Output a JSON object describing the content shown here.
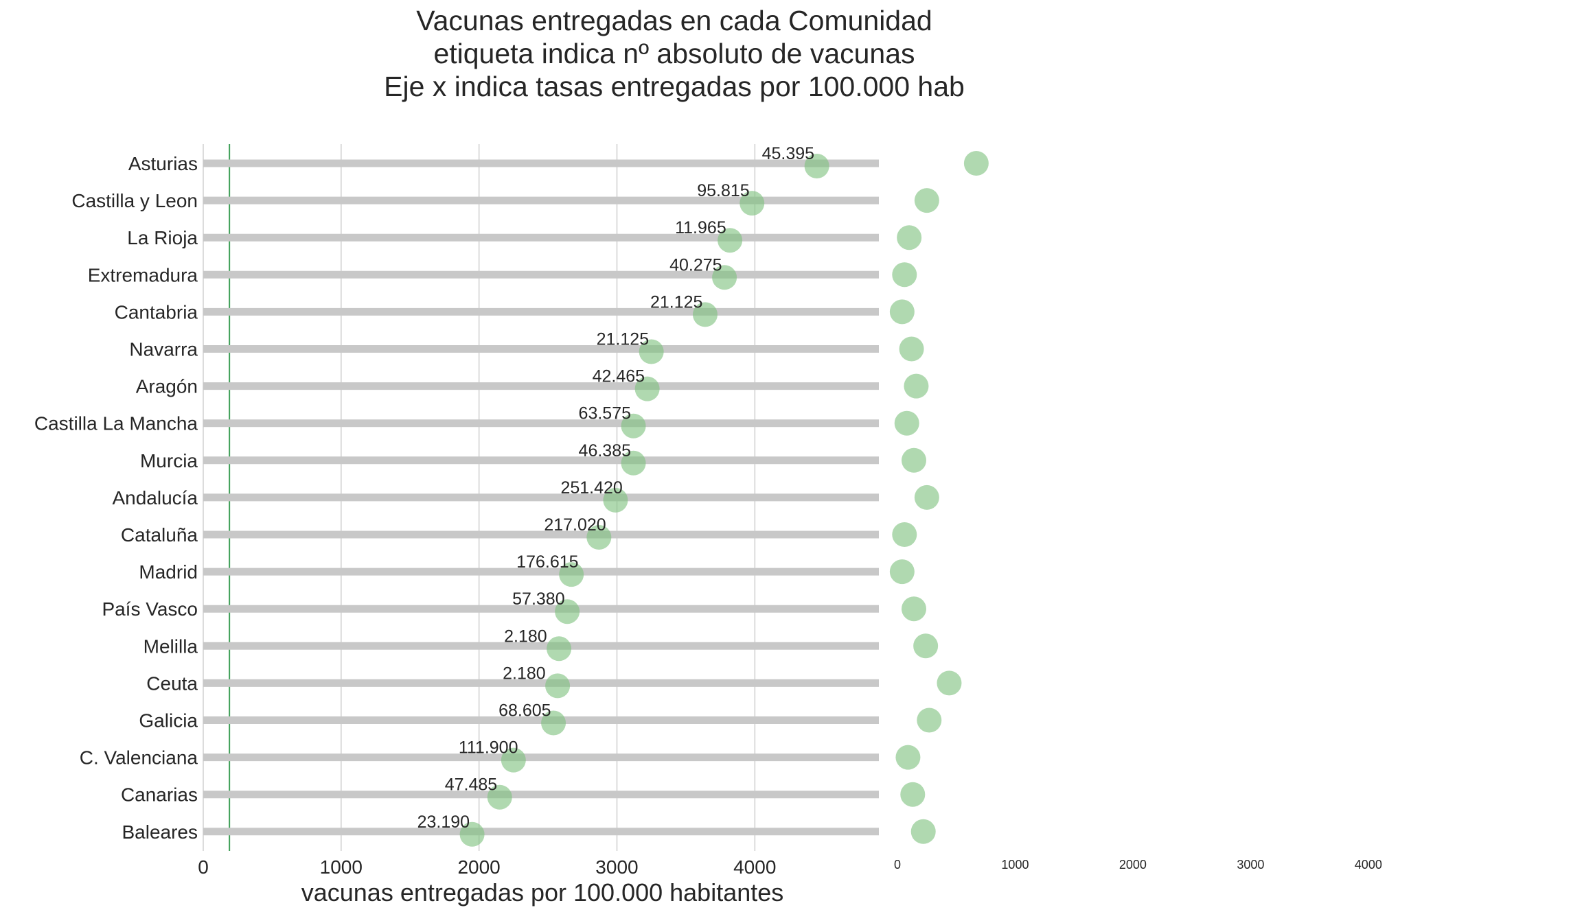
{
  "chart_data": {
    "type": "lollipop",
    "title_lines": [
      "Vacunas entregadas en cada Comunidad",
      "etiqueta indica nº absoluto de vacunas",
      "Eje x indica tasas entregadas por 100.000 hab"
    ],
    "xlabel": "vacunas entregadas por 100.000 habitantes",
    "xlim": [
      0,
      4900
    ],
    "xticks": [
      "0",
      "1000",
      "2000",
      "3000",
      "4000"
    ],
    "reference_line_x": 190,
    "right_panel_xticks": [
      "0",
      "1000",
      "2000",
      "3000",
      "4000"
    ],
    "right_panel_xlim": [
      0,
      4800
    ],
    "categories": [
      "Asturias",
      "Castilla y Leon",
      "La Rioja",
      "Extremadura",
      "Cantabria",
      "Navarra",
      "Aragón",
      "Castilla La Mancha",
      "Murcia",
      "Andalucía",
      "Cataluña",
      "Madrid",
      "País Vasco",
      "Melilla",
      "Ceuta",
      "Galicia",
      "C. Valenciana",
      "Canarias",
      "Baleares"
    ],
    "values": [
      4450,
      3980,
      3820,
      3780,
      3640,
      3250,
      3220,
      3120,
      3120,
      2990,
      2870,
      2670,
      2640,
      2580,
      2570,
      2540,
      2250,
      2150,
      1950
    ],
    "labels": [
      "45.395",
      "95.815",
      "11.965",
      "40.275",
      "21.125",
      "21.125",
      "42.465",
      "63.575",
      "46.385",
      "251.420",
      "217.020",
      "176.615",
      "57.380",
      "2.180",
      "2.180",
      "68.605",
      "111.900",
      "47.485",
      "23.190"
    ],
    "right_values": [
      670,
      250,
      100,
      60,
      40,
      120,
      160,
      80,
      140,
      250,
      60,
      40,
      140,
      240,
      440,
      270,
      90,
      130,
      220
    ],
    "grid": true,
    "colors": {
      "marker": "#7fc17f",
      "stem": "#c8c8c8",
      "reference_line": "#3f9f57",
      "grid": "#dcdcdc"
    }
  }
}
